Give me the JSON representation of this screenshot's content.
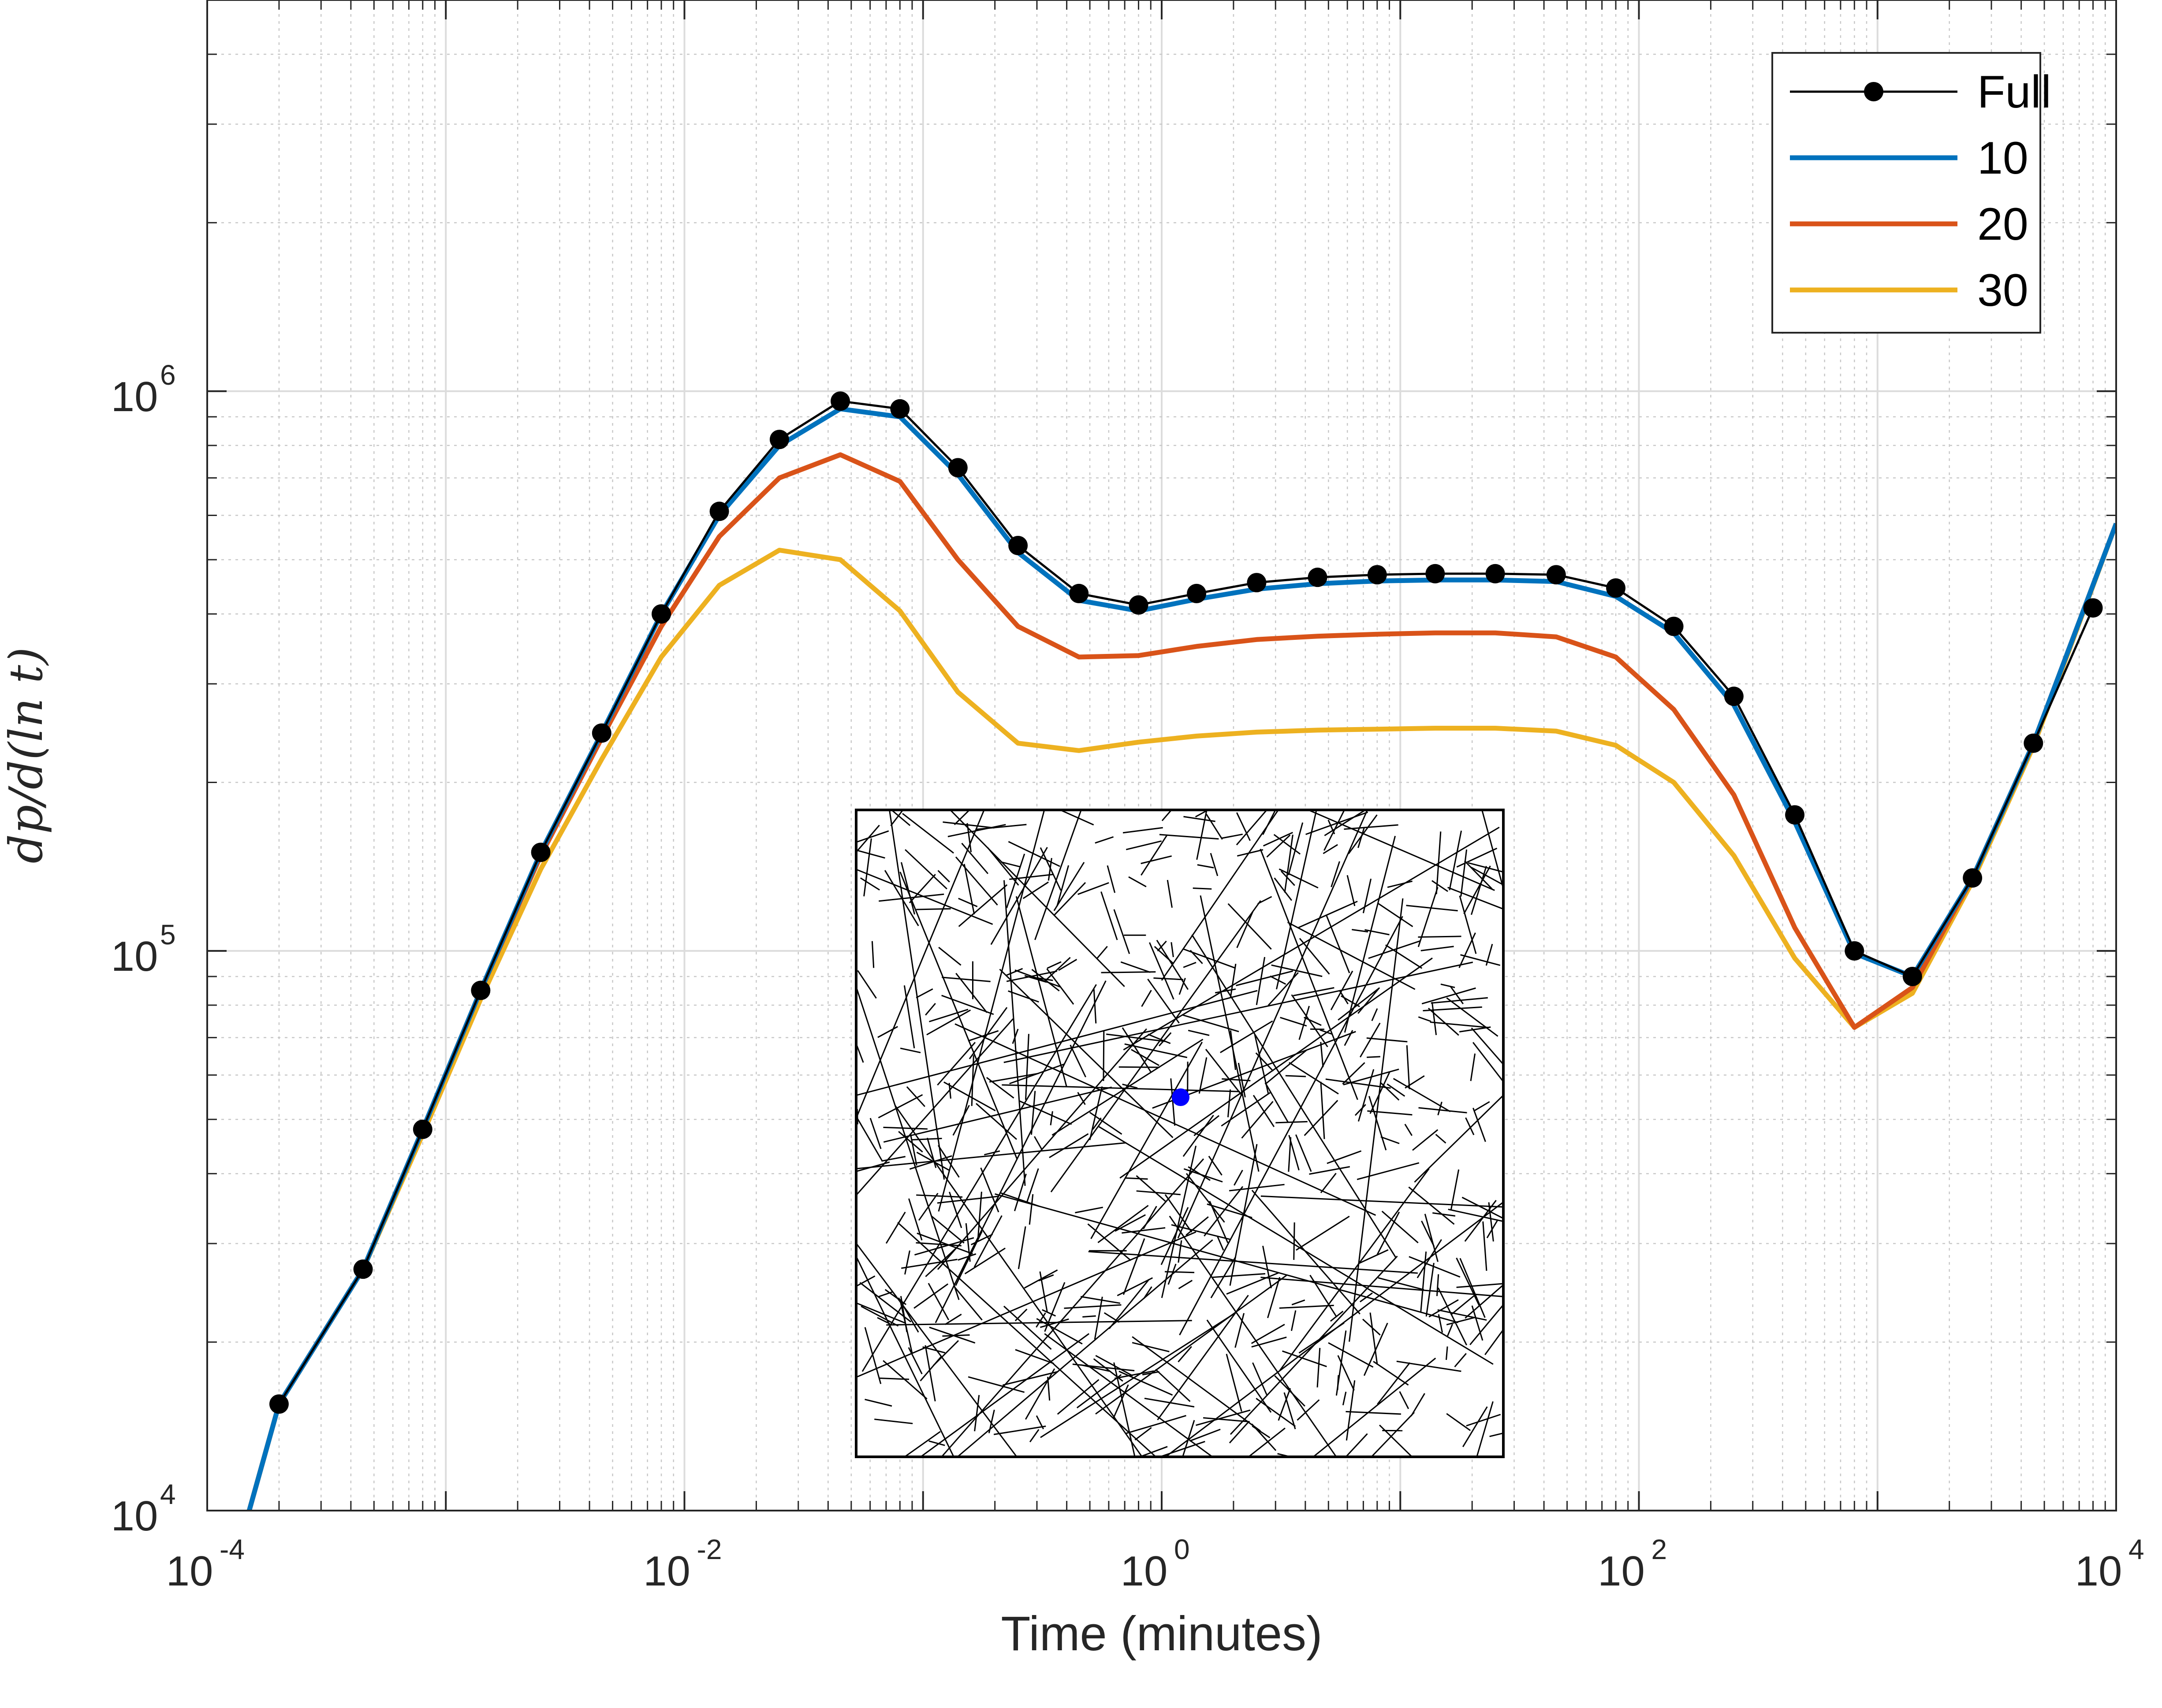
{
  "chart_data": {
    "type": "line",
    "xlabel": "Time (minutes)",
    "ylabel": "dp/d(ln t)",
    "xscale": "log",
    "yscale": "log",
    "xlim": [
      0.0001,
      10000
    ],
    "ylim": [
      10000,
      5000000
    ],
    "grid": true,
    "legend_position": "top-right",
    "x_ticks": [
      {
        "base": "10",
        "exp": "-4",
        "value": 0.0001
      },
      {
        "base": "10",
        "exp": "-2",
        "value": 0.01
      },
      {
        "base": "10",
        "exp": "0",
        "value": 1
      },
      {
        "base": "10",
        "exp": "2",
        "value": 100
      },
      {
        "base": "10",
        "exp": "4",
        "value": 10000
      }
    ],
    "y_ticks": [
      {
        "base": "10",
        "exp": "4",
        "value": 10000
      },
      {
        "base": "10",
        "exp": "5",
        "value": 100000
      },
      {
        "base": "10",
        "exp": "6",
        "value": 1000000
      }
    ],
    "series": [
      {
        "name": "Full",
        "color": "#000000",
        "markers": true,
        "x": [
          0.0002,
          0.00045,
          0.0008,
          0.0014,
          0.0025,
          0.0045,
          0.008,
          0.014,
          0.025,
          0.045,
          0.08,
          0.14,
          0.25,
          0.45,
          0.8,
          1.4,
          2.5,
          4.5,
          8,
          14,
          25,
          45,
          80,
          140,
          250,
          450,
          800,
          1400,
          2500,
          4500,
          8000
        ],
        "y": [
          15500,
          27000,
          48000,
          85000,
          150000,
          245000,
          400000,
          610000,
          820000,
          960000,
          930000,
          730000,
          530000,
          435000,
          415000,
          435000,
          455000,
          465000,
          470000,
          472000,
          472000,
          470000,
          445000,
          380000,
          285000,
          175000,
          100000,
          90000,
          135000,
          235000,
          410000
        ]
      },
      {
        "name": "10",
        "color": "#0072BD",
        "markers": false,
        "x": [
          0.00015,
          0.0002,
          0.00045,
          0.0008,
          0.0014,
          0.0025,
          0.0045,
          0.008,
          0.014,
          0.025,
          0.045,
          0.08,
          0.14,
          0.25,
          0.45,
          0.8,
          1.4,
          2.5,
          4.5,
          8,
          14,
          25,
          45,
          80,
          140,
          250,
          450,
          800,
          1400,
          2500,
          4500,
          10000
        ],
        "y": [
          10000,
          15500,
          27000,
          48000,
          85000,
          150000,
          245000,
          400000,
          600000,
          800000,
          930000,
          900000,
          710000,
          515000,
          423000,
          405000,
          425000,
          443000,
          453000,
          458000,
          460000,
          460000,
          457000,
          430000,
          370000,
          275000,
          170000,
          99000,
          90000,
          135000,
          235000,
          580000
        ]
      },
      {
        "name": "20",
        "color": "#D95319",
        "markers": false,
        "x": [
          0.00015,
          0.0002,
          0.00045,
          0.0008,
          0.0014,
          0.0025,
          0.0045,
          0.008,
          0.014,
          0.025,
          0.045,
          0.08,
          0.14,
          0.25,
          0.45,
          0.8,
          1.4,
          2.5,
          4.5,
          8,
          14,
          25,
          45,
          80,
          140,
          250,
          450,
          800,
          1400,
          2500,
          4500,
          10000
        ],
        "y": [
          10000,
          15500,
          27000,
          48000,
          85000,
          148000,
          240000,
          380000,
          550000,
          700000,
          770000,
          690000,
          500000,
          380000,
          335000,
          337000,
          350000,
          360000,
          365000,
          368000,
          370000,
          370000,
          364000,
          335000,
          270000,
          190000,
          110000,
          73000,
          86000,
          135000,
          235000,
          580000
        ]
      },
      {
        "name": "30",
        "color": "#EDB120",
        "markers": false,
        "x": [
          0.00015,
          0.0002,
          0.00045,
          0.0008,
          0.0014,
          0.0025,
          0.0045,
          0.008,
          0.014,
          0.025,
          0.045,
          0.08,
          0.14,
          0.25,
          0.45,
          0.8,
          1.4,
          2.5,
          4.5,
          8,
          14,
          25,
          45,
          80,
          140,
          250,
          450,
          800,
          1400,
          2500,
          4500,
          10000
        ],
        "y": [
          10000,
          15500,
          27000,
          47000,
          82000,
          140000,
          220000,
          335000,
          450000,
          520000,
          500000,
          405000,
          290000,
          235000,
          228000,
          236000,
          242000,
          246000,
          248000,
          249000,
          250000,
          250000,
          247000,
          233000,
          200000,
          148000,
          97000,
          73000,
          84000,
          133000,
          232000,
          580000
        ]
      }
    ]
  },
  "inset": {
    "description_marker_color": "#0000FF",
    "marker_color": "#0000FF"
  }
}
